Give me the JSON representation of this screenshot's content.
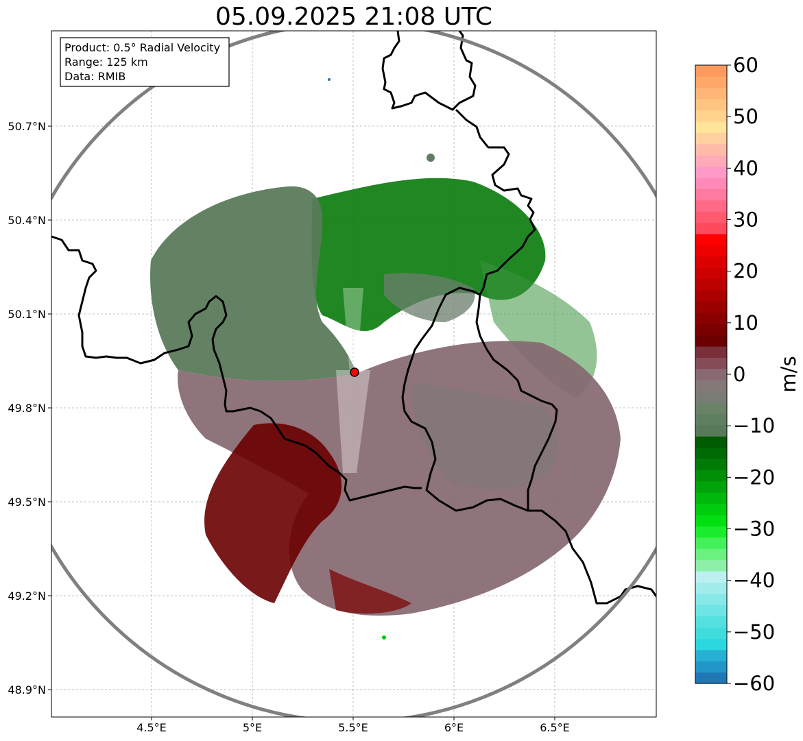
{
  "title": "05.09.2025 21:08 UTC",
  "info_box": {
    "product": "Product: 0.5° Radial Velocity",
    "range": "Range: 125 km",
    "data": "Data: RMIB"
  },
  "map": {
    "lon_range": [
      4.0,
      7.0
    ],
    "lat_range": [
      48.8,
      51.0
    ],
    "x_ticks": [
      {
        "value": 4.5,
        "label": "4.5°E"
      },
      {
        "value": 5.0,
        "label": "5°E"
      },
      {
        "value": 5.5,
        "label": "5.5°E"
      },
      {
        "value": 6.0,
        "label": "6°E"
      },
      {
        "value": 6.5,
        "label": "6.5°E"
      }
    ],
    "y_ticks": [
      {
        "value": 50.7,
        "label": "50.7°N"
      },
      {
        "value": 50.4,
        "label": "50.4°N"
      },
      {
        "value": 50.1,
        "label": "50.1°N"
      },
      {
        "value": 49.8,
        "label": "49.8°N"
      },
      {
        "value": 49.5,
        "label": "49.5°N"
      },
      {
        "value": 49.2,
        "label": "49.2°N"
      },
      {
        "value": 48.9,
        "label": "48.9°N"
      }
    ],
    "grid": true,
    "radar_site": {
      "lon": 5.5,
      "lat": 49.915
    },
    "range_ring_color": "#808080",
    "border_color": "#000000",
    "radar_color": "#ff0000"
  },
  "colorbar": {
    "label": "m/s",
    "range": [
      -60,
      60
    ],
    "ticks": [
      {
        "value": 60,
        "label": "60"
      },
      {
        "value": 50,
        "label": "50"
      },
      {
        "value": 40,
        "label": "40"
      },
      {
        "value": 30,
        "label": "30"
      },
      {
        "value": 20,
        "label": "20"
      },
      {
        "value": 10,
        "label": "10"
      },
      {
        "value": 0,
        "label": "0"
      },
      {
        "value": -10,
        "label": "−10"
      },
      {
        "value": -20,
        "label": "−20"
      },
      {
        "value": -30,
        "label": "−30"
      },
      {
        "value": -40,
        "label": "−40"
      },
      {
        "value": -50,
        "label": "−50"
      },
      {
        "value": -60,
        "label": "−60"
      }
    ],
    "colors": [
      "#1f77b4",
      "#2196c8",
      "#26b0d4",
      "#2cd8df",
      "#40dcdc",
      "#55e0e0",
      "#6ee4e4",
      "#88e8e8",
      "#a2ecec",
      "#bcf0f0",
      "#8ef0a8",
      "#6cf080",
      "#44f05a",
      "#1aee2c",
      "#00e010",
      "#00cc0e",
      "#00b80c",
      "#00a40a",
      "#009008",
      "#007c06",
      "#006a04",
      "#005a02",
      "#587a5a",
      "#5f7f62",
      "#6a8268",
      "#787c74",
      "#857878",
      "#8a6a72",
      "#844c56",
      "#7a303a",
      "#6a0000",
      "#7a0000",
      "#8a0000",
      "#9a0000",
      "#aa0000",
      "#bc0000",
      "#cc0000",
      "#dd0000",
      "#ee0000",
      "#ff0000",
      "#ff4a5e",
      "#ff5a70",
      "#ff6a86",
      "#ff7aa0",
      "#ff8ab8",
      "#ff9ac8",
      "#ffaab8",
      "#ffbaaa",
      "#ffd0a0",
      "#ffe49a",
      "#ffd28e",
      "#ffc482",
      "#ffb676",
      "#ffa86a",
      "#ff9a5e"
    ]
  }
}
